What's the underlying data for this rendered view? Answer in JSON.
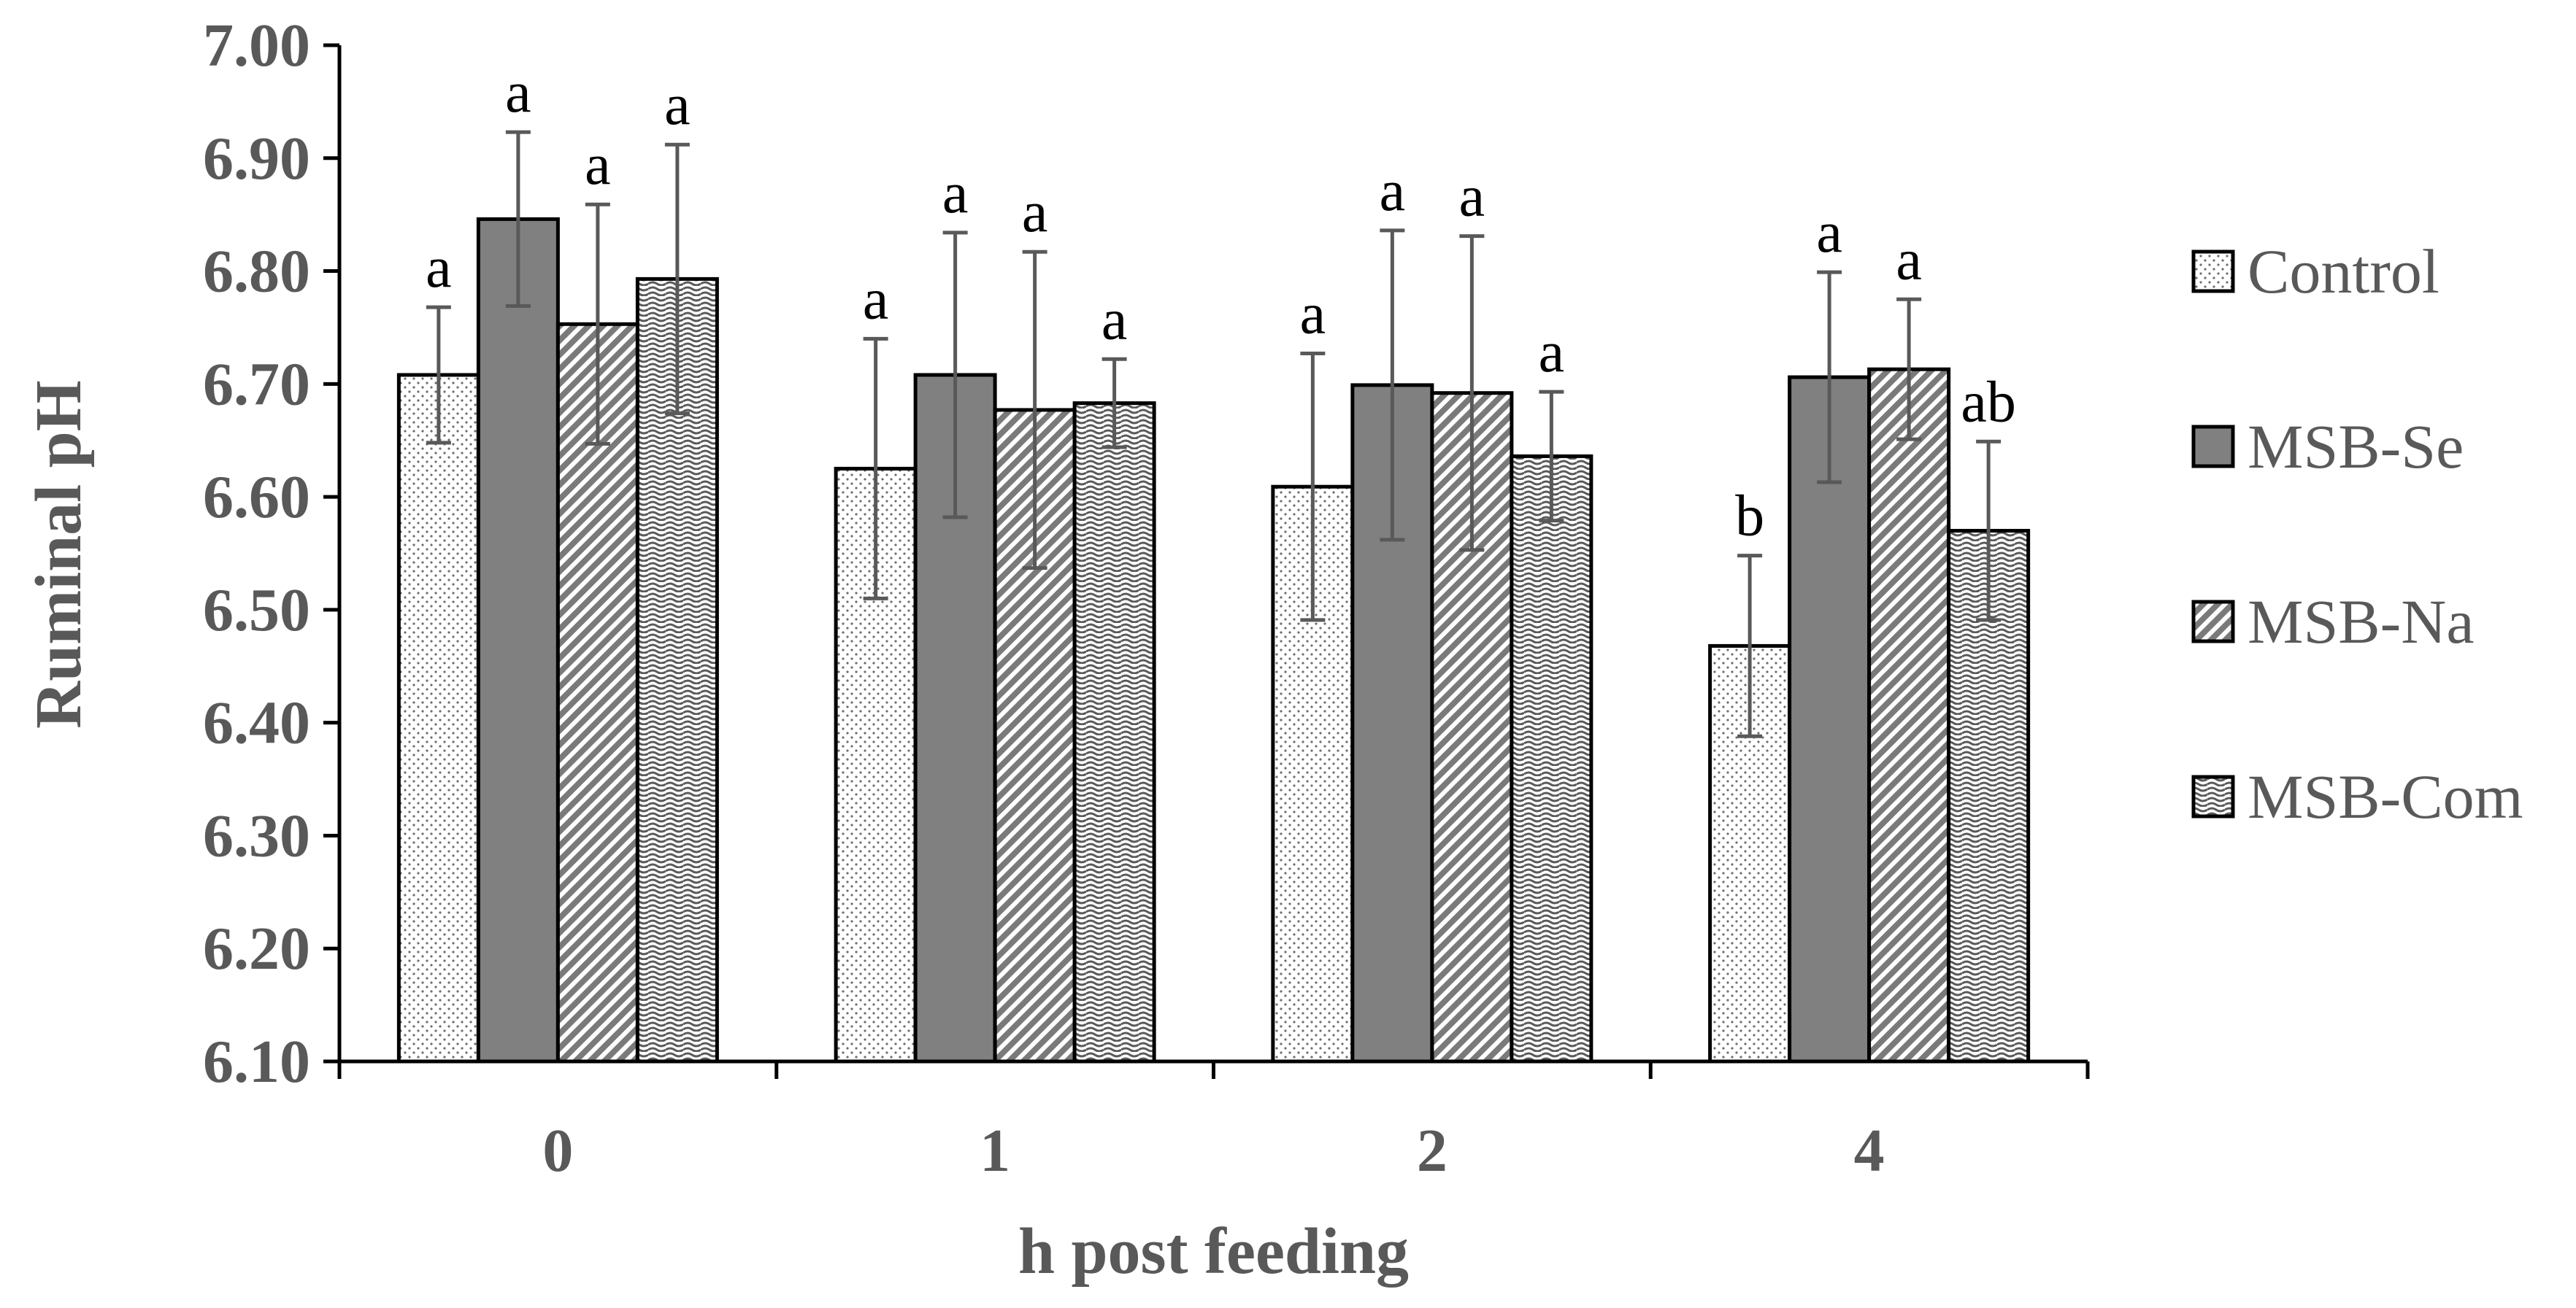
{
  "chart_data": {
    "type": "bar",
    "title": "",
    "xlabel": "h post feeding",
    "ylabel": "Ruminal pH",
    "ylim": [
      6.1,
      7.0
    ],
    "yticks": [
      "6.10",
      "6.20",
      "6.30",
      "6.40",
      "6.50",
      "6.60",
      "6.70",
      "6.80",
      "6.90",
      "7.00"
    ],
    "categories": [
      "0",
      "1",
      "2",
      "4"
    ],
    "legend_position": "right",
    "series": [
      {
        "name": "Control",
        "pattern": "dots",
        "values": [
          6.708,
          6.625,
          6.609,
          6.468
        ],
        "errors": [
          0.06,
          0.115,
          0.118,
          0.08
        ],
        "letters": [
          "a",
          "a",
          "a",
          "b"
        ]
      },
      {
        "name": "MSB-Se",
        "pattern": "solid-gray",
        "values": [
          6.846,
          6.708,
          6.699,
          6.706
        ],
        "errors": [
          0.077,
          0.126,
          0.137,
          0.093
        ],
        "letters": [
          "a",
          "a",
          "a",
          "a"
        ]
      },
      {
        "name": "MSB-Na",
        "pattern": "diagonal-hatch",
        "values": [
          6.753,
          6.677,
          6.692,
          6.713
        ],
        "errors": [
          0.106,
          0.14,
          0.139,
          0.062
        ],
        "letters": [
          "a",
          "a",
          "a",
          "a"
        ]
      },
      {
        "name": "MSB-Com",
        "pattern": "wavy-horizontal",
        "values": [
          6.793,
          6.683,
          6.636,
          6.57
        ],
        "errors": [
          0.119,
          0.039,
          0.057,
          0.079
        ],
        "letters": [
          "a",
          "a",
          "a",
          "ab"
        ]
      }
    ],
    "colors": {
      "axis": "#000000",
      "text": "#595959",
      "bar_outline": "#000000",
      "error_bar": "#595959",
      "msb_se_fill": "#808080"
    }
  }
}
